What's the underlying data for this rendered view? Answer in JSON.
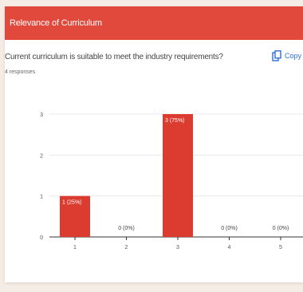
{
  "card": {
    "header_title": "Relevance of Curriculum",
    "question": "Current curriculum is suitable to meet the industry requirements?",
    "copy_label": "Copy",
    "responses": "4 responses"
  },
  "colors": {
    "header_bg": "#e0493b",
    "bar": "#dc3b2f",
    "copy_blue": "#2a6fdb"
  },
  "chart_data": {
    "type": "bar",
    "categories": [
      "1",
      "2",
      "3",
      "4",
      "5"
    ],
    "values": [
      1,
      0,
      3,
      0,
      0
    ],
    "labels": [
      "1 (25%)",
      "0 (0%)",
      "3 (75%)",
      "0 (0%)",
      "0 (0%)"
    ],
    "y_ticks": [
      "0",
      "1",
      "2",
      "3"
    ],
    "ylim": [
      0,
      3
    ],
    "grid": true
  }
}
